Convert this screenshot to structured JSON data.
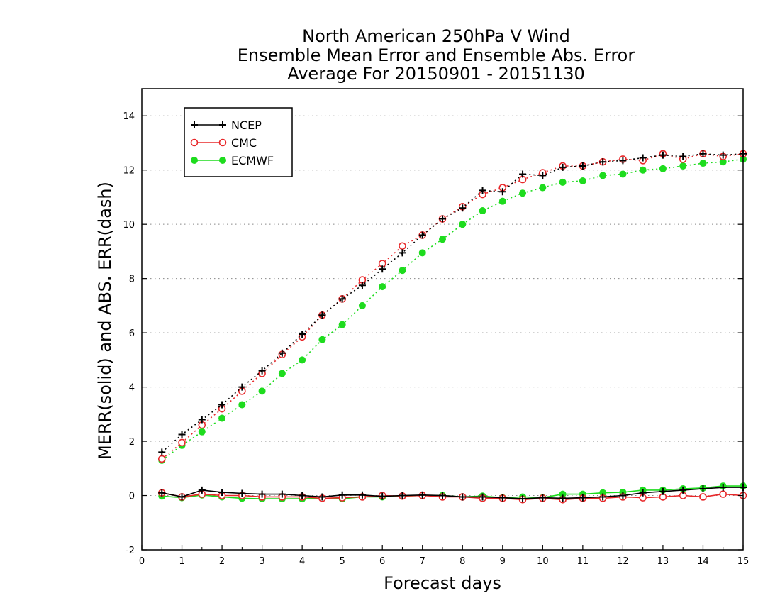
{
  "chart_data": {
    "type": "line",
    "title_lines": [
      "North American 250hPa V Wind",
      "Ensemble Mean Error and Ensemble Abs. Error",
      "Average For 20150901 - 20151130"
    ],
    "xlabel": "Forecast days",
    "ylabel": "MERR(solid) and ABS. ERR(dash)",
    "xlim": [
      0,
      15
    ],
    "ylim": [
      -2,
      15
    ],
    "x_ticks": [
      0,
      1,
      2,
      3,
      4,
      5,
      6,
      7,
      8,
      9,
      10,
      11,
      12,
      13,
      14,
      15
    ],
    "y_ticks": [
      -2,
      0,
      2,
      4,
      6,
      8,
      10,
      12,
      14
    ],
    "grid": "horizontal dotted",
    "legend_position": "top-left",
    "x": [
      0.5,
      1,
      1.5,
      2,
      2.5,
      3,
      3.5,
      4,
      4.5,
      5,
      5.5,
      6,
      6.5,
      7,
      7.5,
      8,
      8.5,
      9,
      9.5,
      10,
      10.5,
      11,
      11.5,
      12,
      12.5,
      13,
      13.5,
      14,
      14.5,
      15
    ],
    "series": [
      {
        "name": "NCEP",
        "color": "#000000",
        "marker": "plus",
        "abs_err": [
          1.6,
          2.25,
          2.8,
          3.35,
          4.0,
          4.6,
          5.25,
          5.95,
          6.65,
          7.25,
          7.75,
          8.35,
          8.95,
          9.6,
          10.2,
          10.6,
          11.25,
          11.2,
          11.85,
          11.8,
          12.1,
          12.15,
          12.3,
          12.35,
          12.45,
          12.55,
          12.5,
          12.6,
          12.55,
          12.6
        ],
        "mean_err": [
          0.1,
          -0.05,
          0.2,
          0.12,
          0.08,
          0.05,
          0.05,
          0.0,
          -0.05,
          0.02,
          0.02,
          -0.03,
          0.0,
          0.02,
          0.0,
          -0.05,
          -0.05,
          -0.08,
          -0.12,
          -0.08,
          -0.1,
          -0.08,
          -0.05,
          0.0,
          0.1,
          0.15,
          0.2,
          0.25,
          0.3,
          0.3
        ]
      },
      {
        "name": "CMC",
        "color": "#e8282a",
        "marker": "open-circle",
        "abs_err": [
          1.35,
          1.95,
          2.6,
          3.2,
          3.85,
          4.5,
          5.2,
          5.85,
          6.65,
          7.25,
          7.95,
          8.55,
          9.2,
          9.6,
          10.2,
          10.65,
          11.1,
          11.35,
          11.65,
          11.9,
          12.15,
          12.15,
          12.3,
          12.4,
          12.35,
          12.6,
          12.4,
          12.6,
          12.5,
          12.6
        ],
        "mean_err": [
          0.1,
          -0.05,
          0.05,
          0.0,
          0.0,
          -0.05,
          -0.05,
          -0.05,
          -0.1,
          -0.08,
          -0.05,
          0.0,
          -0.02,
          0.0,
          -0.05,
          -0.05,
          -0.1,
          -0.1,
          -0.15,
          -0.1,
          -0.15,
          -0.1,
          -0.1,
          -0.05,
          -0.08,
          -0.05,
          0.0,
          -0.05,
          0.05,
          0.0
        ]
      },
      {
        "name": "ECMWF",
        "color": "#1edc1e",
        "marker": "filled-circle",
        "abs_err": [
          1.3,
          1.85,
          2.35,
          2.85,
          3.35,
          3.85,
          4.5,
          5.0,
          5.75,
          6.3,
          7.0,
          7.7,
          8.3,
          8.95,
          9.45,
          10.0,
          10.5,
          10.85,
          11.15,
          11.35,
          11.55,
          11.6,
          11.8,
          11.85,
          12.0,
          12.05,
          12.15,
          12.25,
          12.3,
          12.4
        ],
        "mean_err": [
          -0.02,
          -0.08,
          0.02,
          -0.05,
          -0.1,
          -0.12,
          -0.12,
          -0.12,
          -0.1,
          -0.12,
          -0.05,
          -0.05,
          -0.02,
          0.0,
          0.0,
          -0.05,
          -0.02,
          -0.08,
          -0.05,
          -0.08,
          0.05,
          0.05,
          0.1,
          0.12,
          0.2,
          0.2,
          0.25,
          0.28,
          0.35,
          0.35
        ]
      }
    ]
  }
}
